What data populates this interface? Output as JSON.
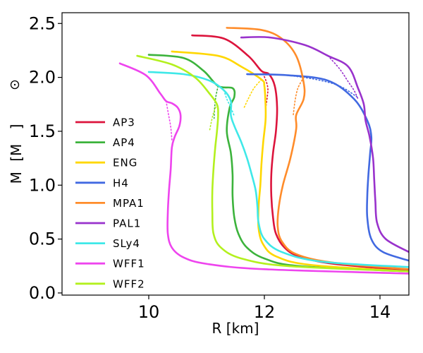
{
  "chart_data": {
    "type": "line",
    "title": "",
    "xlabel": "R [km]",
    "ylabel": "M [M⊙]",
    "ylabel_parts": [
      "M",
      "[M",
      "]"
    ],
    "xlim": [
      8.5,
      14.5
    ],
    "ylim": [
      -0.02,
      2.6
    ],
    "xticks": [
      10,
      12,
      14
    ],
    "xtick_labels": [
      "10",
      "12",
      "14"
    ],
    "yticks": [
      0.0,
      0.5,
      1.0,
      1.5,
      2.0,
      2.5
    ],
    "ytick_labels": [
      "0.0",
      "0.5",
      "1.0",
      "1.5",
      "2.0",
      "2.5"
    ],
    "grid": false,
    "legend_position": "left",
    "series": [
      {
        "name": "AP3",
        "color": "#dc143c",
        "x": [
          14.5,
          13.2,
          12.6,
          12.35,
          12.2,
          12.15,
          12.12,
          12.12,
          12.15,
          12.2,
          12.22,
          12.18,
          12.08,
          11.95,
          11.72,
          11.3,
          10.75
        ],
        "y": [
          0.21,
          0.27,
          0.34,
          0.42,
          0.55,
          0.7,
          0.9,
          1.1,
          1.3,
          1.5,
          1.72,
          1.92,
          2.03,
          2.06,
          2.2,
          2.36,
          2.39
        ],
        "dotted_x": [
          11.95,
          12.02,
          12.06,
          12.05,
          12.03
        ],
        "dotted_y": [
          2.06,
          1.98,
          1.9,
          1.82,
          1.74
        ]
      },
      {
        "name": "AP4",
        "color": "#3cb33c",
        "x": [
          14.5,
          12.6,
          12.0,
          11.7,
          11.55,
          11.48,
          11.45,
          11.45,
          11.42,
          11.35,
          11.4,
          11.48,
          11.45,
          11.2,
          10.95,
          10.6,
          10.0
        ],
        "y": [
          0.2,
          0.25,
          0.32,
          0.42,
          0.55,
          0.7,
          0.9,
          1.1,
          1.3,
          1.5,
          1.72,
          1.82,
          1.9,
          1.92,
          2.06,
          2.18,
          2.21
        ],
        "dotted_x": [
          11.2,
          11.16,
          11.14,
          11.13
        ],
        "dotted_y": [
          1.92,
          1.82,
          1.72,
          1.62
        ]
      },
      {
        "name": "ENG",
        "color": "#ffd700",
        "x": [
          14.5,
          12.8,
          12.2,
          11.98,
          11.9,
          11.9,
          11.93,
          11.95,
          11.98,
          12.02,
          12.02,
          12.0,
          11.95,
          11.6,
          11.2,
          10.4
        ],
        "y": [
          0.2,
          0.26,
          0.34,
          0.45,
          0.6,
          0.8,
          1.0,
          1.2,
          1.4,
          1.6,
          1.75,
          1.92,
          1.98,
          2.1,
          2.2,
          2.24
        ],
        "dotted_x": [
          11.95,
          11.82,
          11.72,
          11.65
        ],
        "dotted_y": [
          1.98,
          1.9,
          1.8,
          1.72
        ]
      },
      {
        "name": "H4",
        "color": "#4169e1",
        "x": [
          14.5,
          14.05,
          13.85,
          13.78,
          13.78,
          13.8,
          13.83,
          13.85,
          13.78,
          13.55,
          13.1,
          12.4,
          11.7
        ],
        "y": [
          0.3,
          0.38,
          0.5,
          0.7,
          0.9,
          1.1,
          1.3,
          1.45,
          1.6,
          1.8,
          1.97,
          2.02,
          2.03
        ],
        "dotted_x": [
          12.4,
          12.9,
          13.3,
          13.6
        ],
        "dotted_y": [
          2.02,
          1.98,
          1.92,
          1.82
        ]
      },
      {
        "name": "MPA1",
        "color": "#ff8c2a",
        "x": [
          14.5,
          13.2,
          12.55,
          12.3,
          12.23,
          12.25,
          12.32,
          12.45,
          12.55,
          12.55,
          12.68,
          12.68,
          12.55,
          12.3,
          11.95,
          11.35
        ],
        "y": [
          0.22,
          0.28,
          0.36,
          0.48,
          0.62,
          0.8,
          1.0,
          1.25,
          1.52,
          1.65,
          1.8,
          1.95,
          2.2,
          2.36,
          2.44,
          2.46
        ],
        "dotted_x": [
          12.68,
          12.58,
          12.53,
          12.5
        ],
        "dotted_y": [
          2.0,
          1.9,
          1.78,
          1.65
        ]
      },
      {
        "name": "PAL1",
        "color": "#9932cc",
        "x": [
          14.5,
          14.1,
          13.95,
          13.92,
          13.9,
          13.88,
          13.82,
          13.75,
          13.72,
          13.62,
          13.45,
          13.1,
          12.7,
          12.1,
          11.6
        ],
        "y": [
          0.38,
          0.5,
          0.65,
          0.85,
          1.05,
          1.25,
          1.45,
          1.6,
          1.75,
          1.9,
          2.1,
          2.2,
          2.3,
          2.37,
          2.37
        ],
        "dotted_x": [
          13.1,
          13.3,
          13.45,
          13.55,
          13.62
        ],
        "dotted_y": [
          2.2,
          2.08,
          1.96,
          1.88,
          1.8
        ]
      },
      {
        "name": "SLy4",
        "color": "#3fe8e8",
        "x": [
          14.5,
          13.0,
          12.3,
          12.0,
          11.9,
          11.88,
          11.85,
          11.78,
          11.7,
          11.6,
          11.48,
          11.42,
          11.42,
          11.3,
          11.05,
          10.6,
          10.0
        ],
        "y": [
          0.24,
          0.29,
          0.38,
          0.5,
          0.65,
          0.8,
          0.95,
          1.1,
          1.25,
          1.4,
          1.55,
          1.65,
          1.78,
          1.88,
          1.97,
          2.03,
          2.05
        ],
        "dotted_x": [
          11.3,
          11.35,
          11.42,
          11.48
        ],
        "dotted_y": [
          1.88,
          1.8,
          1.72,
          1.64
        ]
      },
      {
        "name": "WFF1",
        "color": "#ee44ee",
        "x": [
          14.5,
          12.0,
          11.0,
          10.6,
          10.4,
          10.33,
          10.33,
          10.35,
          10.38,
          10.4,
          10.45,
          10.53,
          10.55,
          10.5,
          10.4,
          10.3,
          10.2,
          9.95,
          9.5
        ],
        "y": [
          0.18,
          0.22,
          0.27,
          0.33,
          0.42,
          0.55,
          0.75,
          0.95,
          1.15,
          1.35,
          1.45,
          1.55,
          1.65,
          1.72,
          1.76,
          1.78,
          1.85,
          2.02,
          2.13
        ],
        "dotted_x": [
          10.3,
          10.34,
          10.38,
          10.4
        ],
        "dotted_y": [
          1.78,
          1.66,
          1.54,
          1.42
        ]
      },
      {
        "name": "WFF2",
        "color": "#b3f01e",
        "x": [
          14.5,
          12.4,
          11.6,
          11.25,
          11.12,
          11.1,
          11.1,
          11.12,
          11.15,
          11.18,
          11.2,
          11.18,
          11.05,
          10.8,
          10.4,
          9.8
        ],
        "y": [
          0.2,
          0.25,
          0.32,
          0.42,
          0.55,
          0.75,
          0.95,
          1.15,
          1.35,
          1.5,
          1.65,
          1.75,
          1.85,
          2.0,
          2.12,
          2.2
        ],
        "dotted_x": [
          11.18,
          11.12,
          11.08,
          11.05
        ],
        "dotted_y": [
          1.75,
          1.67,
          1.58,
          1.5
        ]
      }
    ]
  }
}
